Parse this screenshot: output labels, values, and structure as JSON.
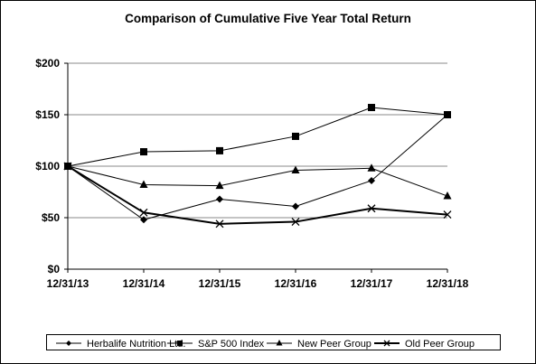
{
  "chart_data": {
    "type": "line",
    "title": "Comparison of Cumulative Five Year Total Return",
    "categories": [
      "12/31/13",
      "12/31/14",
      "12/31/15",
      "12/31/16",
      "12/31/17",
      "12/31/18"
    ],
    "y_ticks": [
      "$0",
      "$50",
      "$100",
      "$150",
      "$200"
    ],
    "ylim": [
      0,
      200
    ],
    "y_tick_values": [
      0,
      50,
      100,
      150,
      200
    ],
    "grid": true,
    "legend_position": "bottom",
    "series": [
      {
        "name": "Herbalife Nutrition Ltd.",
        "marker": "diamond",
        "line_width": 1,
        "values": [
          100,
          48,
          68,
          61,
          86,
          150
        ]
      },
      {
        "name": "S&P 500 Index",
        "marker": "square",
        "line_width": 1,
        "values": [
          100,
          114,
          115,
          129,
          157,
          150
        ]
      },
      {
        "name": "New Peer Group",
        "marker": "triangle",
        "line_width": 1,
        "values": [
          100,
          82,
          81,
          96,
          98,
          71
        ]
      },
      {
        "name": "Old Peer Group",
        "marker": "x",
        "line_width": 2,
        "values": [
          100,
          55,
          44,
          46,
          59,
          53
        ]
      }
    ]
  }
}
